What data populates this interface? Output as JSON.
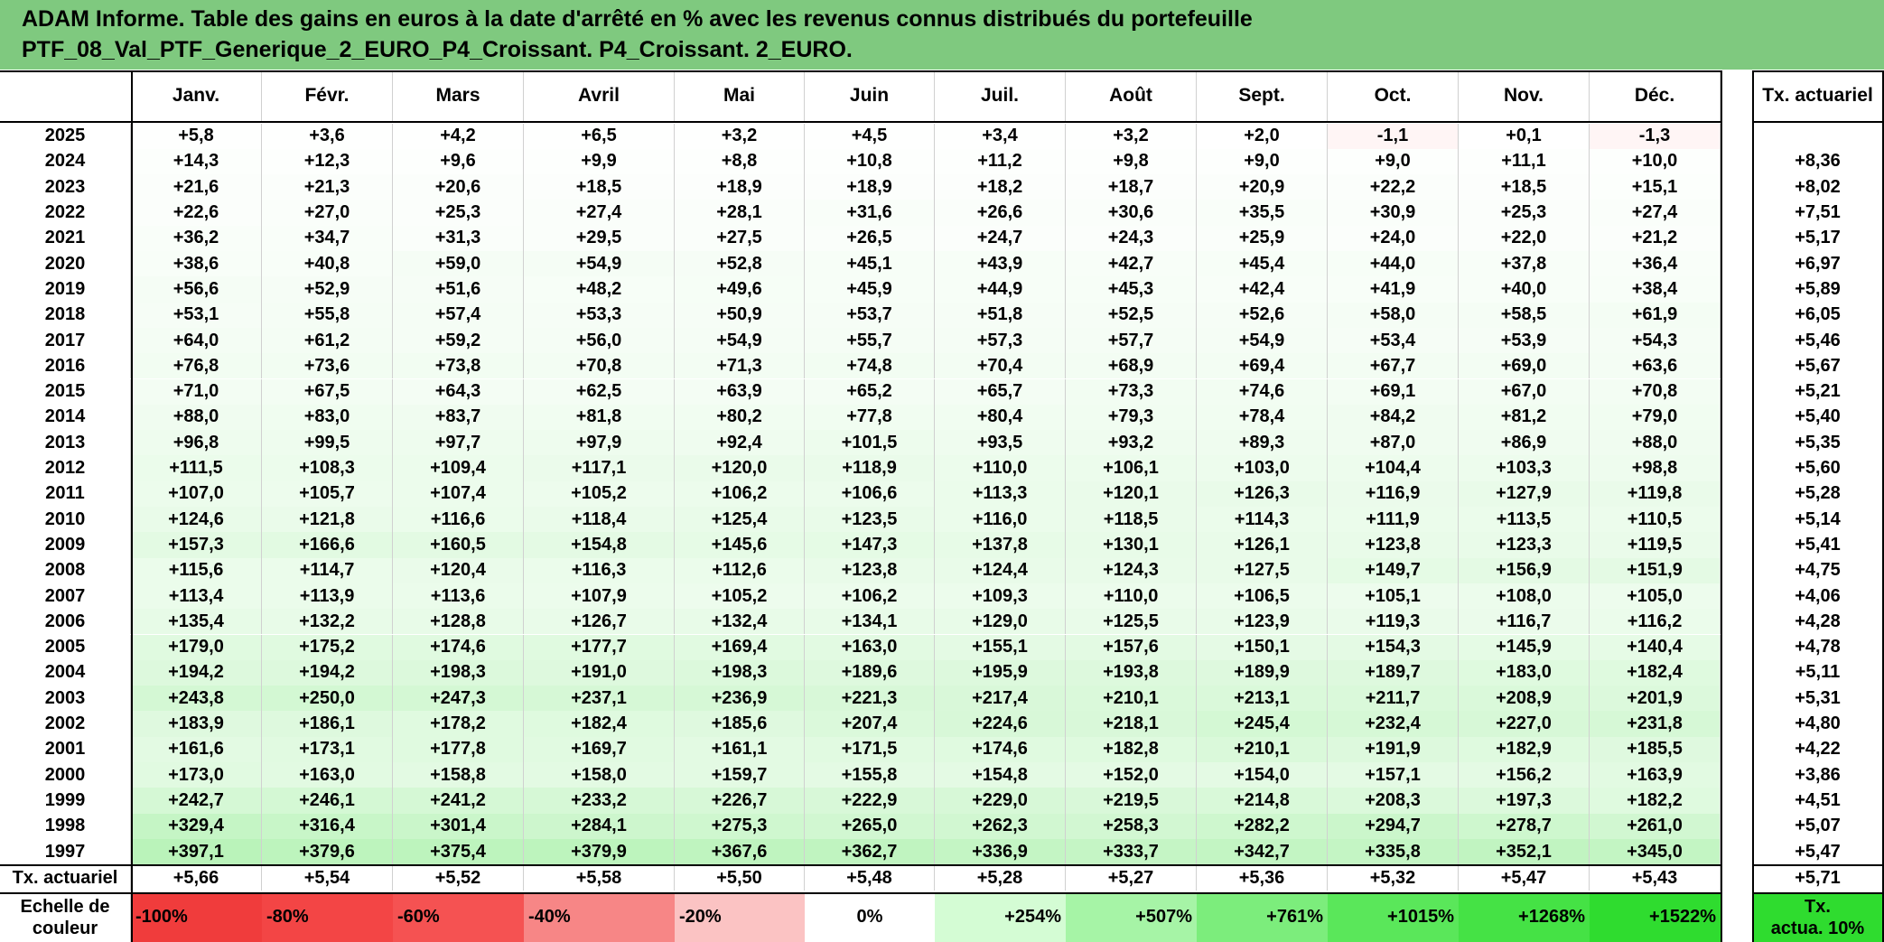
{
  "title_line1": "ADAM Informe. Table des gains en euros à la date d'arrêté en % avec les revenus connus distribués du portefeuille",
  "title_line2": "PTF_08_Val_PTF_Generique_2_EURO_P4_Croissant. P4_Croissant. 2_EURO.",
  "months": [
    "Janv.",
    "Févr.",
    "Mars",
    "Avril",
    "Mai",
    "Juin",
    "Juil.",
    "Août",
    "Sept.",
    "Oct.",
    "Nov.",
    "Déc."
  ],
  "tx_header": "Tx. actuariel",
  "rows": [
    {
      "year": "2025",
      "values": [
        "+5,8",
        "+3,6",
        "+4,2",
        "+6,5",
        "+3,2",
        "+4,5",
        "+3,4",
        "+3,2",
        "+2,0",
        "-1,1",
        "+0,1",
        "-1,3"
      ],
      "tx": ""
    },
    {
      "year": "2024",
      "values": [
        "+14,3",
        "+12,3",
        "+9,6",
        "+9,9",
        "+8,8",
        "+10,8",
        "+11,2",
        "+9,8",
        "+9,0",
        "+9,0",
        "+11,1",
        "+10,0"
      ],
      "tx": "+8,36"
    },
    {
      "year": "2023",
      "values": [
        "+21,6",
        "+21,3",
        "+20,6",
        "+18,5",
        "+18,9",
        "+18,9",
        "+18,2",
        "+18,7",
        "+20,9",
        "+22,2",
        "+18,5",
        "+15,1"
      ],
      "tx": "+8,02"
    },
    {
      "year": "2022",
      "values": [
        "+22,6",
        "+27,0",
        "+25,3",
        "+27,4",
        "+28,1",
        "+31,6",
        "+26,6",
        "+30,6",
        "+35,5",
        "+30,9",
        "+25,3",
        "+27,4"
      ],
      "tx": "+7,51"
    },
    {
      "year": "2021",
      "values": [
        "+36,2",
        "+34,7",
        "+31,3",
        "+29,5",
        "+27,5",
        "+26,5",
        "+24,7",
        "+24,3",
        "+25,9",
        "+24,0",
        "+22,0",
        "+21,2"
      ],
      "tx": "+5,17"
    },
    {
      "year": "2020",
      "values": [
        "+38,6",
        "+40,8",
        "+59,0",
        "+54,9",
        "+52,8",
        "+45,1",
        "+43,9",
        "+42,7",
        "+45,4",
        "+44,0",
        "+37,8",
        "+36,4"
      ],
      "tx": "+6,97"
    },
    {
      "year": "2019",
      "values": [
        "+56,6",
        "+52,9",
        "+51,6",
        "+48,2",
        "+49,6",
        "+45,9",
        "+44,9",
        "+45,3",
        "+42,4",
        "+41,9",
        "+40,0",
        "+38,4"
      ],
      "tx": "+5,89"
    },
    {
      "year": "2018",
      "values": [
        "+53,1",
        "+55,8",
        "+57,4",
        "+53,3",
        "+50,9",
        "+53,7",
        "+51,8",
        "+52,5",
        "+52,6",
        "+58,0",
        "+58,5",
        "+61,9"
      ],
      "tx": "+6,05"
    },
    {
      "year": "2017",
      "values": [
        "+64,0",
        "+61,2",
        "+59,2",
        "+56,0",
        "+54,9",
        "+55,7",
        "+57,3",
        "+57,7",
        "+54,9",
        "+53,4",
        "+53,9",
        "+54,3"
      ],
      "tx": "+5,46"
    },
    {
      "year": "2016",
      "values": [
        "+76,8",
        "+73,6",
        "+73,8",
        "+70,8",
        "+71,3",
        "+74,8",
        "+70,4",
        "+68,9",
        "+69,4",
        "+67,7",
        "+69,0",
        "+63,6"
      ],
      "tx": "+5,67"
    },
    {
      "year": "2015",
      "values": [
        "+71,0",
        "+67,5",
        "+64,3",
        "+62,5",
        "+63,9",
        "+65,2",
        "+65,7",
        "+73,3",
        "+74,6",
        "+69,1",
        "+67,0",
        "+70,8"
      ],
      "tx": "+5,21"
    },
    {
      "year": "2014",
      "values": [
        "+88,0",
        "+83,0",
        "+83,7",
        "+81,8",
        "+80,2",
        "+77,8",
        "+80,4",
        "+79,3",
        "+78,4",
        "+84,2",
        "+81,2",
        "+79,0"
      ],
      "tx": "+5,40"
    },
    {
      "year": "2013",
      "values": [
        "+96,8",
        "+99,5",
        "+97,7",
        "+97,9",
        "+92,4",
        "+101,5",
        "+93,5",
        "+93,2",
        "+89,3",
        "+87,0",
        "+86,9",
        "+88,0"
      ],
      "tx": "+5,35"
    },
    {
      "year": "2012",
      "values": [
        "+111,5",
        "+108,3",
        "+109,4",
        "+117,1",
        "+120,0",
        "+118,9",
        "+110,0",
        "+106,1",
        "+103,0",
        "+104,4",
        "+103,3",
        "+98,8"
      ],
      "tx": "+5,60"
    },
    {
      "year": "2011",
      "values": [
        "+107,0",
        "+105,7",
        "+107,4",
        "+105,2",
        "+106,2",
        "+106,6",
        "+113,3",
        "+120,1",
        "+126,3",
        "+116,9",
        "+127,9",
        "+119,8"
      ],
      "tx": "+5,28"
    },
    {
      "year": "2010",
      "values": [
        "+124,6",
        "+121,8",
        "+116,6",
        "+118,4",
        "+125,4",
        "+123,5",
        "+116,0",
        "+118,5",
        "+114,3",
        "+111,9",
        "+113,5",
        "+110,5"
      ],
      "tx": "+5,14"
    },
    {
      "year": "2009",
      "values": [
        "+157,3",
        "+166,6",
        "+160,5",
        "+154,8",
        "+145,6",
        "+147,3",
        "+137,8",
        "+130,1",
        "+126,1",
        "+123,8",
        "+123,3",
        "+119,5"
      ],
      "tx": "+5,41"
    },
    {
      "year": "2008",
      "values": [
        "+115,6",
        "+114,7",
        "+120,4",
        "+116,3",
        "+112,6",
        "+123,8",
        "+124,4",
        "+124,3",
        "+127,5",
        "+149,7",
        "+156,9",
        "+151,9"
      ],
      "tx": "+4,75"
    },
    {
      "year": "2007",
      "values": [
        "+113,4",
        "+113,9",
        "+113,6",
        "+107,9",
        "+105,2",
        "+106,2",
        "+109,3",
        "+110,0",
        "+106,5",
        "+105,1",
        "+108,0",
        "+105,0"
      ],
      "tx": "+4,06"
    },
    {
      "year": "2006",
      "values": [
        "+135,4",
        "+132,2",
        "+128,8",
        "+126,7",
        "+132,4",
        "+134,1",
        "+129,0",
        "+125,5",
        "+123,9",
        "+119,3",
        "+116,7",
        "+116,2"
      ],
      "tx": "+4,28"
    },
    {
      "year": "2005",
      "values": [
        "+179,0",
        "+175,2",
        "+174,6",
        "+177,7",
        "+169,4",
        "+163,0",
        "+155,1",
        "+157,6",
        "+150,1",
        "+154,3",
        "+145,9",
        "+140,4"
      ],
      "tx": "+4,78"
    },
    {
      "year": "2004",
      "values": [
        "+194,2",
        "+194,2",
        "+198,3",
        "+191,0",
        "+198,3",
        "+189,6",
        "+195,9",
        "+193,8",
        "+189,9",
        "+189,7",
        "+183,0",
        "+182,4"
      ],
      "tx": "+5,11"
    },
    {
      "year": "2003",
      "values": [
        "+243,8",
        "+250,0",
        "+247,3",
        "+237,1",
        "+236,9",
        "+221,3",
        "+217,4",
        "+210,1",
        "+213,1",
        "+211,7",
        "+208,9",
        "+201,9"
      ],
      "tx": "+5,31"
    },
    {
      "year": "2002",
      "values": [
        "+183,9",
        "+186,1",
        "+178,2",
        "+182,4",
        "+185,6",
        "+207,4",
        "+224,6",
        "+218,1",
        "+245,4",
        "+232,4",
        "+227,0",
        "+231,8"
      ],
      "tx": "+4,80"
    },
    {
      "year": "2001",
      "values": [
        "+161,6",
        "+173,1",
        "+177,8",
        "+169,7",
        "+161,1",
        "+171,5",
        "+174,6",
        "+182,8",
        "+210,1",
        "+191,9",
        "+182,9",
        "+185,5"
      ],
      "tx": "+4,22"
    },
    {
      "year": "2000",
      "values": [
        "+173,0",
        "+163,0",
        "+158,8",
        "+158,0",
        "+159,7",
        "+155,8",
        "+154,8",
        "+152,0",
        "+154,0",
        "+157,1",
        "+156,2",
        "+163,9"
      ],
      "tx": "+3,86"
    },
    {
      "year": "1999",
      "values": [
        "+242,7",
        "+246,1",
        "+241,2",
        "+233,2",
        "+226,7",
        "+222,9",
        "+229,0",
        "+219,5",
        "+214,8",
        "+208,3",
        "+197,3",
        "+182,2"
      ],
      "tx": "+4,51"
    },
    {
      "year": "1998",
      "values": [
        "+329,4",
        "+316,4",
        "+301,4",
        "+284,1",
        "+275,3",
        "+265,0",
        "+262,3",
        "+258,3",
        "+282,2",
        "+294,7",
        "+278,7",
        "+261,0"
      ],
      "tx": "+5,07"
    },
    {
      "year": "1997",
      "values": [
        "+397,1",
        "+379,6",
        "+375,4",
        "+379,9",
        "+367,6",
        "+362,7",
        "+336,9",
        "+333,7",
        "+342,7",
        "+335,8",
        "+352,1",
        "+345,0"
      ],
      "tx": "+5,47"
    }
  ],
  "tx_row": {
    "label": "Tx. actuariel",
    "values": [
      "+5,66",
      "+5,54",
      "+5,52",
      "+5,58",
      "+5,50",
      "+5,48",
      "+5,28",
      "+5,27",
      "+5,36",
      "+5,32",
      "+5,47",
      "+5,43"
    ],
    "total": "+5,71"
  },
  "scale_row": {
    "label_line1": "Echelle de",
    "label_line2": "couleur",
    "labels": [
      "-100%",
      "-80%",
      "-60%",
      "-40%",
      "-20%",
      "0%",
      "+254%",
      "+507%",
      "+761%",
      "+1015%",
      "+1268%",
      "+1522%"
    ],
    "colors": [
      "#f03c3c",
      "#f34545",
      "#f55252",
      "#f78686",
      "#fbc3c3",
      "#ffffff",
      "#d4fcd4",
      "#a6f4a6",
      "#7ced7c",
      "#5ae75a",
      "#45e245",
      "#2fdc2f"
    ],
    "tx_line1": "Tx.",
    "tx_line2": "actua. 10%",
    "tx_color": "#2fdc2f"
  },
  "colors": {
    "header_bg": "#7fc97f",
    "negative_bg": "#fff5f5"
  }
}
